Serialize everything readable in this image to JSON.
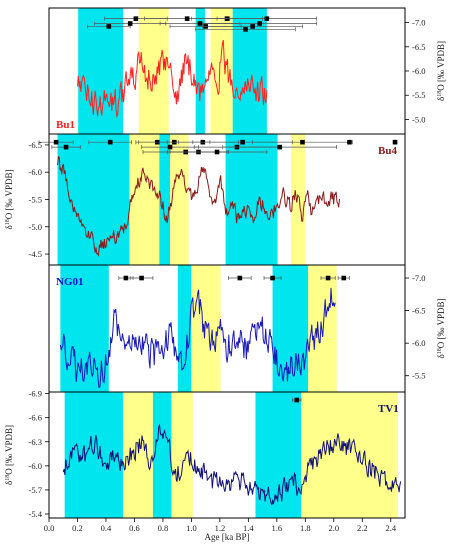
{
  "chart_data": {
    "type": "line",
    "x_axis": {
      "label": "Age [ka BP]",
      "range": [
        0.0,
        2.5
      ],
      "ticks": [
        "0.0",
        "0.2",
        "0.4",
        "0.6",
        "0.8",
        "1.0",
        "1.2",
        "1.4",
        "1.6",
        "1.8",
        "2.0",
        "2.2",
        "2.4"
      ]
    },
    "band_colors": {
      "cyan": "#00e5ee",
      "yellow": "#ffff8c"
    },
    "panels": [
      {
        "name": "Bu1",
        "label_color": "#ff2020",
        "line_color": "#ff2222",
        "axis_side": "right",
        "y_axis": {
          "label": "δ18O [‰ VPDB]",
          "range": [
            -7.3,
            -4.7
          ],
          "inverted": true,
          "ticks": [
            "-5.0",
            "-5.5",
            "-6.0",
            "-6.5",
            "-7.0"
          ],
          "tick_values": [
            -5.0,
            -5.5,
            -6.0,
            -6.5,
            -7.0
          ]
        },
        "x_range": [
          0.2,
          1.53
        ],
        "anchors": [
          [
            0.2,
            -5.8
          ],
          [
            0.26,
            -5.6
          ],
          [
            0.3,
            -5.4
          ],
          [
            0.35,
            -5.3
          ],
          [
            0.4,
            -5.4
          ],
          [
            0.45,
            -5.3
          ],
          [
            0.5,
            -5.5
          ],
          [
            0.55,
            -5.7
          ],
          [
            0.6,
            -5.8
          ],
          [
            0.63,
            -6.2
          ],
          [
            0.66,
            -6.1
          ],
          [
            0.7,
            -5.9
          ],
          [
            0.74,
            -5.7
          ],
          [
            0.78,
            -6.0
          ],
          [
            0.82,
            -6.3
          ],
          [
            0.85,
            -6.1
          ],
          [
            0.88,
            -5.6
          ],
          [
            0.9,
            -5.5
          ],
          [
            0.93,
            -5.9
          ],
          [
            0.96,
            -6.2
          ],
          [
            1.0,
            -6.0
          ],
          [
            1.03,
            -5.8
          ],
          [
            1.06,
            -5.5
          ],
          [
            1.09,
            -5.7
          ],
          [
            1.12,
            -6.0
          ],
          [
            1.15,
            -6.2
          ],
          [
            1.19,
            -5.9
          ],
          [
            1.22,
            -6.3
          ],
          [
            1.26,
            -5.9
          ],
          [
            1.31,
            -5.7
          ],
          [
            1.36,
            -5.6
          ],
          [
            1.41,
            -5.8
          ],
          [
            1.46,
            -5.5
          ],
          [
            1.5,
            -5.6
          ],
          [
            1.53,
            -5.5
          ]
        ],
        "noise": 0.28,
        "bands": [
          {
            "x0": 0.205,
            "x1": 0.52,
            "color": "cyan"
          },
          {
            "x0": 0.63,
            "x1": 0.84,
            "color": "yellow"
          },
          {
            "x0": 1.03,
            "x1": 1.095,
            "color": "cyan"
          },
          {
            "x0": 1.135,
            "x1": 1.29,
            "color": "yellow"
          },
          {
            "x0": 1.29,
            "x1": 1.53,
            "color": "cyan"
          }
        ],
        "dates": [
          {
            "x": 0.42,
            "y": -6.92,
            "err": 0.15
          },
          {
            "x": 0.57,
            "y": -6.98,
            "err": 0.25
          },
          {
            "x": 0.61,
            "y": -7.08,
            "err": 0.22
          },
          {
            "x": 0.97,
            "y": -7.08,
            "err": 0.3
          },
          {
            "x": 1.06,
            "y": -6.98,
            "err": 0.28
          },
          {
            "x": 1.1,
            "y": -6.92,
            "err": 0.25
          },
          {
            "x": 1.25,
            "y": -7.08,
            "err": 0.25
          },
          {
            "x": 1.38,
            "y": -6.86,
            "err": 0.35
          },
          {
            "x": 1.43,
            "y": -6.92,
            "err": 0.35
          },
          {
            "x": 1.48,
            "y": -6.98,
            "err": 0.4
          },
          {
            "x": 1.53,
            "y": -7.08,
            "err": 0.35
          }
        ]
      },
      {
        "name": "Bu4",
        "label_color": "#8b1a1a",
        "line_color": "#8b1a1a",
        "axis_side": "left",
        "y_axis": {
          "label": "δ18O [‰ VPDB]",
          "range": [
            -6.7,
            -4.3
          ],
          "inverted": true,
          "ticks": [
            "-4.5",
            "-5.0",
            "-5.5",
            "-6.0",
            "-6.5"
          ],
          "tick_values": [
            -4.5,
            -5.0,
            -5.5,
            -6.0,
            -6.5
          ]
        },
        "x_range": [
          0.06,
          2.04
        ],
        "anchors": [
          [
            0.06,
            -6.2
          ],
          [
            0.1,
            -6.0
          ],
          [
            0.15,
            -5.6
          ],
          [
            0.2,
            -5.2
          ],
          [
            0.25,
            -5.0
          ],
          [
            0.3,
            -4.8
          ],
          [
            0.35,
            -4.6
          ],
          [
            0.4,
            -4.7
          ],
          [
            0.45,
            -4.8
          ],
          [
            0.5,
            -4.9
          ],
          [
            0.55,
            -5.1
          ],
          [
            0.58,
            -5.5
          ],
          [
            0.62,
            -5.8
          ],
          [
            0.66,
            -6.0
          ],
          [
            0.7,
            -5.8
          ],
          [
            0.75,
            -5.7
          ],
          [
            0.8,
            -5.4
          ],
          [
            0.83,
            -5.2
          ],
          [
            0.86,
            -5.5
          ],
          [
            0.89,
            -5.8
          ],
          [
            0.92,
            -5.9
          ],
          [
            0.94,
            -6.0
          ],
          [
            0.96,
            -5.7
          ],
          [
            1.0,
            -5.6
          ],
          [
            1.04,
            -5.8
          ],
          [
            1.08,
            -6.0
          ],
          [
            1.12,
            -5.8
          ],
          [
            1.15,
            -5.5
          ],
          [
            1.18,
            -5.6
          ],
          [
            1.21,
            -5.8
          ],
          [
            1.24,
            -5.3
          ],
          [
            1.28,
            -5.4
          ],
          [
            1.33,
            -5.1
          ],
          [
            1.38,
            -5.3
          ],
          [
            1.43,
            -5.2
          ],
          [
            1.48,
            -5.5
          ],
          [
            1.52,
            -5.3
          ],
          [
            1.56,
            -5.2
          ],
          [
            1.6,
            -5.4
          ],
          [
            1.64,
            -5.6
          ],
          [
            1.67,
            -5.5
          ],
          [
            1.7,
            -5.3
          ],
          [
            1.73,
            -5.7
          ],
          [
            1.76,
            -5.4
          ],
          [
            1.78,
            -5.1
          ],
          [
            1.8,
            -5.4
          ],
          [
            1.82,
            -5.6
          ],
          [
            1.84,
            -5.3
          ],
          [
            1.87,
            -5.5
          ]
        ],
        "noise": 0.14,
        "bands": [
          {
            "x0": 0.06,
            "x1": 0.565,
            "color": "cyan"
          },
          {
            "x0": 0.565,
            "x1": 0.775,
            "color": "yellow"
          },
          {
            "x0": 0.775,
            "x1": 0.85,
            "color": "cyan"
          },
          {
            "x0": 0.85,
            "x1": 0.98,
            "color": "yellow"
          },
          {
            "x0": 1.24,
            "x1": 1.605,
            "color": "cyan"
          },
          {
            "x0": 1.7,
            "x1": 1.8,
            "color": "yellow"
          }
        ],
        "dates": [
          {
            "x": 0.05,
            "y": -6.55,
            "err": 0.12
          },
          {
            "x": 0.12,
            "y": -6.46,
            "err": 0.1
          },
          {
            "x": 0.43,
            "y": -6.55,
            "err": 0.15
          },
          {
            "x": 0.76,
            "y": -6.55,
            "err": 0.15
          },
          {
            "x": 0.85,
            "y": -6.46,
            "err": 0.2
          },
          {
            "x": 0.88,
            "y": -6.55,
            "err": 0.25
          },
          {
            "x": 0.96,
            "y": -6.37,
            "err": 0.3
          },
          {
            "x": 1.05,
            "y": -6.37,
            "err": 0.2
          },
          {
            "x": 1.08,
            "y": -6.55,
            "err": 0.25
          },
          {
            "x": 1.18,
            "y": -6.37,
            "err": 0.35
          },
          {
            "x": 1.32,
            "y": -6.46,
            "err": 0.3
          },
          {
            "x": 1.36,
            "y": -6.55,
            "err": 0.35
          },
          {
            "x": 1.62,
            "y": -6.46,
            "err": 0.4
          },
          {
            "x": 1.78,
            "y": -6.55,
            "err": 0.35
          },
          {
            "x": 2.11,
            "y": -6.55,
            "err": 0.0
          },
          {
            "x": 2.43,
            "y": -6.55,
            "err": 0.0
          }
        ]
      },
      {
        "name": "NG01",
        "label_color": "#1010d8",
        "line_color": "#1a1ab8",
        "axis_side": "right",
        "y_axis": {
          "label": "δ18O [‰ VPDB]",
          "range": [
            -7.2,
            -5.25
          ],
          "inverted": true,
          "ticks": [
            "-5.5",
            "-6.0",
            "-6.5",
            "-7.0"
          ],
          "tick_values": [
            -5.5,
            -6.0,
            -6.5,
            -7.0
          ]
        },
        "x_range": [
          0.08,
          2.01
        ],
        "anchors": [
          [
            0.08,
            -6.1
          ],
          [
            0.12,
            -5.9
          ],
          [
            0.16,
            -5.7
          ],
          [
            0.2,
            -5.6
          ],
          [
            0.25,
            -5.7
          ],
          [
            0.3,
            -5.8
          ],
          [
            0.35,
            -5.6
          ],
          [
            0.4,
            -5.7
          ],
          [
            0.43,
            -5.9
          ],
          [
            0.46,
            -6.3
          ],
          [
            0.5,
            -6.0
          ],
          [
            0.55,
            -5.8
          ],
          [
            0.6,
            -6.1
          ],
          [
            0.65,
            -6.0
          ],
          [
            0.7,
            -5.9
          ],
          [
            0.75,
            -5.8
          ],
          [
            0.8,
            -6.0
          ],
          [
            0.85,
            -6.2
          ],
          [
            0.88,
            -5.9
          ],
          [
            0.92,
            -5.7
          ],
          [
            0.95,
            -5.8
          ],
          [
            0.98,
            -6.1
          ],
          [
            1.0,
            -6.4
          ],
          [
            1.03,
            -6.6
          ],
          [
            1.06,
            -6.5
          ],
          [
            1.1,
            -6.2
          ],
          [
            1.15,
            -6.0
          ],
          [
            1.2,
            -6.2
          ],
          [
            1.25,
            -5.9
          ],
          [
            1.3,
            -6.1
          ],
          [
            1.35,
            -6.0
          ],
          [
            1.4,
            -5.9
          ],
          [
            1.45,
            -6.3
          ],
          [
            1.5,
            -6.2
          ],
          [
            1.55,
            -6.0
          ],
          [
            1.58,
            -5.8
          ],
          [
            1.62,
            -5.6
          ],
          [
            1.66,
            -5.5
          ],
          [
            1.7,
            -5.6
          ],
          [
            1.75,
            -5.7
          ],
          [
            1.8,
            -5.8
          ],
          [
            1.84,
            -6.0
          ],
          [
            1.88,
            -6.1
          ],
          [
            1.92,
            -6.3
          ],
          [
            1.95,
            -6.5
          ],
          [
            1.98,
            -6.8
          ],
          [
            2.01,
            -6.6
          ]
        ],
        "noise": 0.22,
        "bands": [
          {
            "x0": 0.08,
            "x1": 0.42,
            "color": "cyan"
          },
          {
            "x0": 0.905,
            "x1": 1.0,
            "color": "cyan"
          },
          {
            "x0": 1.0,
            "x1": 1.205,
            "color": "yellow"
          },
          {
            "x0": 1.57,
            "x1": 1.82,
            "color": "cyan"
          },
          {
            "x0": 1.82,
            "x1": 2.02,
            "color": "yellow"
          }
        ],
        "dates": [
          {
            "x": 0.54,
            "y": -7.0,
            "err": 0.05
          },
          {
            "x": 0.65,
            "y": -7.0,
            "err": 0.08
          },
          {
            "x": 1.34,
            "y": -7.0,
            "err": 0.08
          },
          {
            "x": 1.57,
            "y": -7.0,
            "err": 0.06
          },
          {
            "x": 1.96,
            "y": -7.0,
            "err": 0.05
          },
          {
            "x": 2.07,
            "y": -7.0,
            "err": 0.04
          }
        ]
      },
      {
        "name": "TV1",
        "label_color": "#111166",
        "line_color": "#111177",
        "axis_side": "left",
        "y_axis": {
          "label": "δ18O [‰ VPDB]",
          "range": [
            -6.92,
            -5.35
          ],
          "inverted": true,
          "ticks": [
            "-5.4",
            "-5.7",
            "-6.0",
            "-6.3",
            "-6.6",
            "-6.9"
          ],
          "tick_values": [
            -5.4,
            -5.7,
            -6.0,
            -6.3,
            -6.6,
            -6.9
          ]
        },
        "x_range": [
          0.1,
          2.47
        ],
        "anchors": [
          [
            0.1,
            -6.0
          ],
          [
            0.15,
            -6.1
          ],
          [
            0.2,
            -6.2
          ],
          [
            0.25,
            -6.1
          ],
          [
            0.3,
            -6.3
          ],
          [
            0.35,
            -6.2
          ],
          [
            0.4,
            -6.0
          ],
          [
            0.45,
            -6.2
          ],
          [
            0.5,
            -6.0
          ],
          [
            0.55,
            -6.1
          ],
          [
            0.6,
            -6.2
          ],
          [
            0.65,
            -6.3
          ],
          [
            0.7,
            -6.1
          ],
          [
            0.72,
            -6.0
          ],
          [
            0.75,
            -6.3
          ],
          [
            0.78,
            -6.5
          ],
          [
            0.82,
            -6.4
          ],
          [
            0.86,
            -6.1
          ],
          [
            0.9,
            -5.9
          ],
          [
            0.95,
            -6.0
          ],
          [
            1.0,
            -6.1
          ],
          [
            1.05,
            -5.9
          ],
          [
            1.1,
            -5.9
          ],
          [
            1.15,
            -5.8
          ],
          [
            1.2,
            -5.9
          ],
          [
            1.25,
            -5.8
          ],
          [
            1.3,
            -5.8
          ],
          [
            1.35,
            -5.8
          ],
          [
            1.4,
            -5.7
          ],
          [
            1.45,
            -5.7
          ],
          [
            1.5,
            -5.6
          ],
          [
            1.55,
            -5.7
          ],
          [
            1.6,
            -5.6
          ],
          [
            1.65,
            -5.7
          ],
          [
            1.7,
            -5.8
          ],
          [
            1.73,
            -5.9
          ],
          [
            1.75,
            -5.6
          ],
          [
            1.78,
            -5.8
          ],
          [
            1.82,
            -6.0
          ],
          [
            1.88,
            -6.1
          ],
          [
            1.95,
            -6.2
          ],
          [
            2.0,
            -6.3
          ],
          [
            2.05,
            -6.3
          ],
          [
            2.1,
            -6.2
          ],
          [
            2.15,
            -6.2
          ],
          [
            2.2,
            -6.1
          ],
          [
            2.25,
            -6.0
          ],
          [
            2.3,
            -5.9
          ],
          [
            2.35,
            -5.8
          ],
          [
            2.4,
            -5.8
          ],
          [
            2.45,
            -5.8
          ]
        ],
        "noise": 0.12,
        "bands": [
          {
            "x0": 0.11,
            "x1": 0.52,
            "color": "cyan"
          },
          {
            "x0": 0.52,
            "x1": 0.73,
            "color": "yellow"
          },
          {
            "x0": 0.73,
            "x1": 0.86,
            "color": "cyan"
          },
          {
            "x0": 0.86,
            "x1": 1.01,
            "color": "yellow"
          },
          {
            "x0": 1.45,
            "x1": 1.77,
            "color": "cyan"
          },
          {
            "x0": 1.77,
            "x1": 2.45,
            "color": "yellow"
          }
        ],
        "dates": [
          {
            "x": 1.74,
            "y": -6.82,
            "err": 0.03
          }
        ]
      }
    ]
  }
}
